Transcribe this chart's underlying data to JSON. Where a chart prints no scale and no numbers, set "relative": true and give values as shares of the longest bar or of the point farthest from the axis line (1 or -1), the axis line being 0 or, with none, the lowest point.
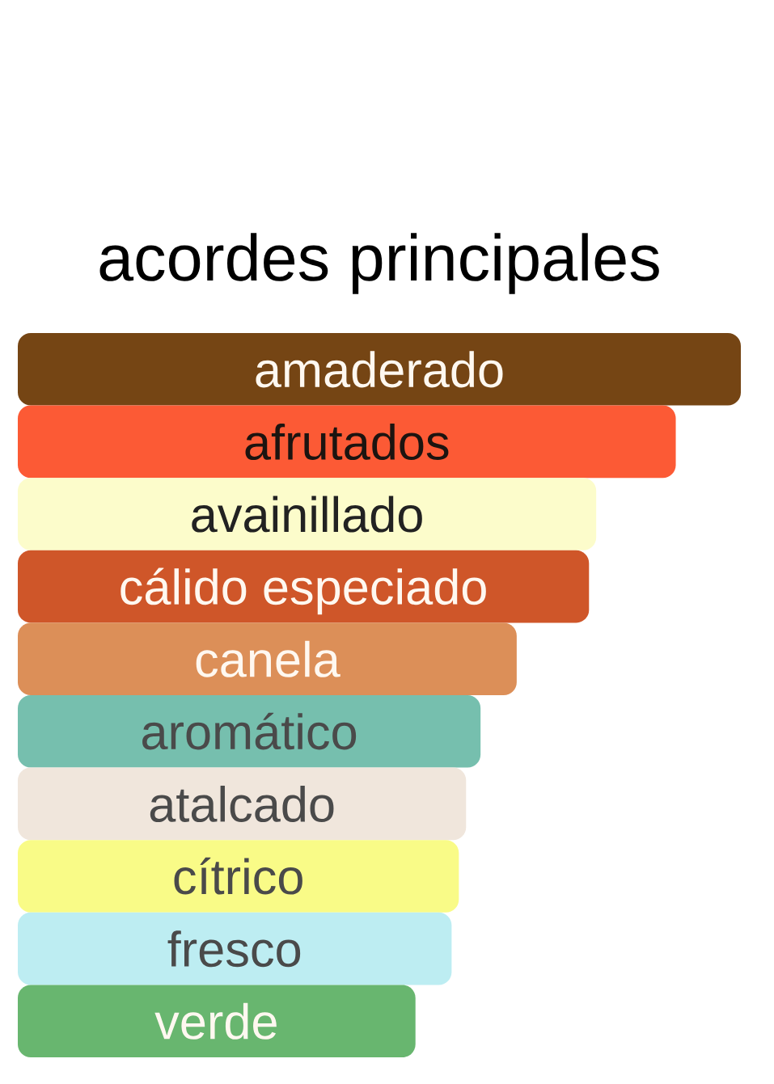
{
  "chart_data": {
    "type": "bar",
    "orientation": "horizontal",
    "relative": true,
    "title": "acordes principales",
    "categories": [
      "amaderado",
      "afrutados",
      "avainillado",
      "cálido especiado",
      "canela",
      "aromático",
      "atalcado",
      "cítrico",
      "fresco",
      "verde"
    ],
    "values": [
      1,
      0.91,
      0.8,
      0.79,
      0.69,
      0.64,
      0.62,
      0.61,
      0.6,
      0.55
    ],
    "colors": [
      "#754514",
      "#fc5a35",
      "#fcfccb",
      "#cf5629",
      "#dc8f58",
      "#76bfae",
      "#f0e6dc",
      "#f9fb87",
      "#bdedf2",
      "#68b66f"
    ]
  }
}
